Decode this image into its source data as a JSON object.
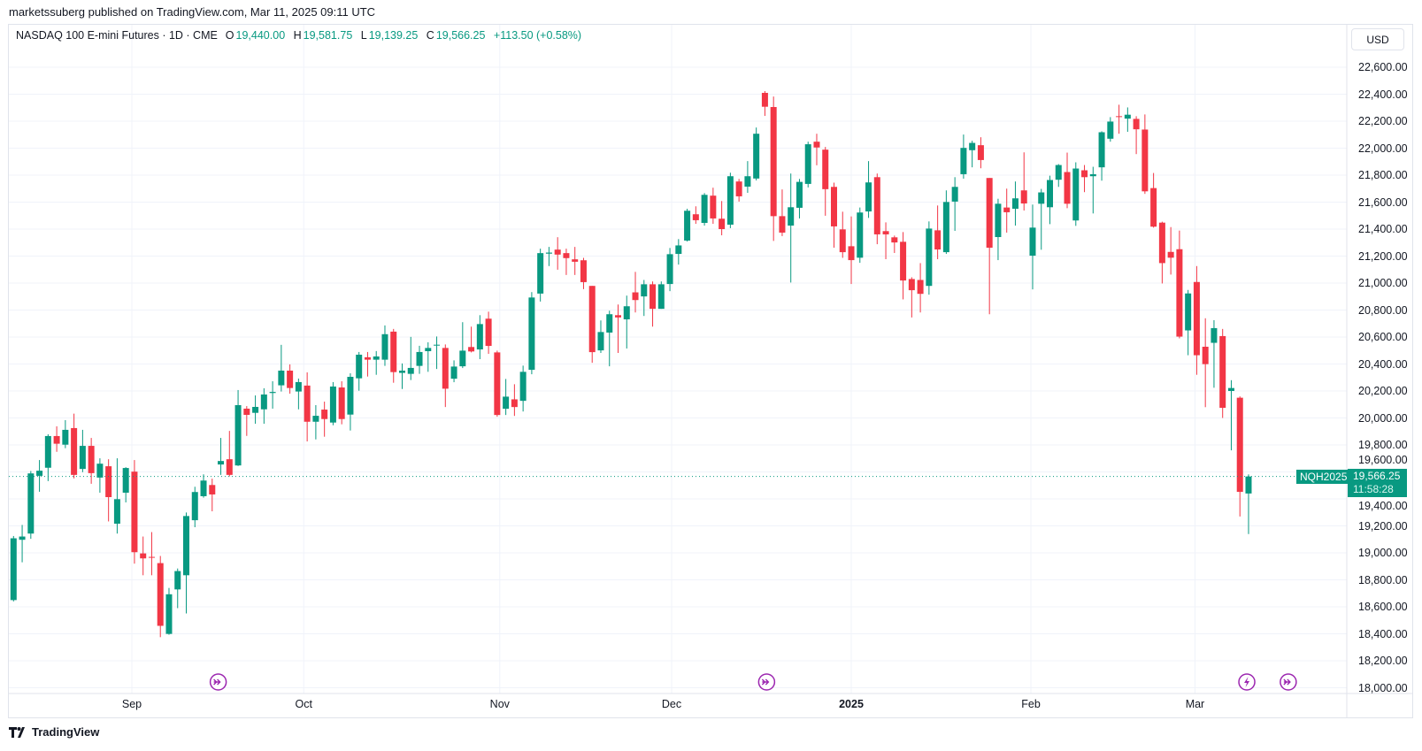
{
  "publisher_line": "marketssuberg published on TradingView.com, Mar 11, 2025 09:11 UTC",
  "legend": {
    "symbol": "NASDAQ 100 E-mini Futures · 1D · CME",
    "o_label": "O",
    "o": "19,440.00",
    "h_label": "H",
    "h": "19,581.75",
    "l_label": "L",
    "l": "19,139.25",
    "c_label": "C",
    "c": "19,566.25",
    "change": "+113.50 (+0.58%)"
  },
  "currency_button": "USD",
  "price_tag": {
    "symbol": "NQH2025",
    "price": "19,566.25",
    "countdown": "11:58:28"
  },
  "branding": "TradingView",
  "colors": {
    "up": "#089981",
    "down": "#F23645",
    "event": "#9C27B0",
    "grid": "#f0f3fa"
  },
  "chart_data": {
    "type": "candlestick",
    "title": "NASDAQ 100 E-mini Futures · 1D · CME",
    "ylabel": "USD",
    "ylim": [
      17950,
      22750
    ],
    "current_price": 19566.25,
    "y_ticks": [
      "22,600.00",
      "22,400.00",
      "22,200.00",
      "22,000.00",
      "21,800.00",
      "21,600.00",
      "21,400.00",
      "21,200.00",
      "21,000.00",
      "20,800.00",
      "20,600.00",
      "20,400.00",
      "20,200.00",
      "20,000.00",
      "19,800.00",
      "19,600.00",
      "19,400.00",
      "19,200.00",
      "19,000.00",
      "18,800.00",
      "18,600.00",
      "18,400.00",
      "18,200.00",
      "18,000.00"
    ],
    "y_tick_values": [
      22600,
      22400,
      22200,
      22000,
      21800,
      21600,
      21400,
      21200,
      21000,
      20800,
      20600,
      20400,
      20200,
      20000,
      19800,
      19600,
      19400,
      19200,
      19000,
      18800,
      18600,
      18400,
      18200,
      18000
    ],
    "x_ticks": [
      {
        "label": "Sep",
        "bar": 13.7,
        "bold": false
      },
      {
        "label": "Oct",
        "bar": 33.6,
        "bold": false
      },
      {
        "label": "Nov",
        "bar": 56.3,
        "bold": false
      },
      {
        "label": "Dec",
        "bar": 76.2,
        "bold": false
      },
      {
        "label": "2025",
        "bar": 97,
        "bold": true
      },
      {
        "label": "Feb",
        "bar": 117.8,
        "bold": false
      },
      {
        "label": "Mar",
        "bar": 136.8,
        "bold": false
      }
    ],
    "events": [
      {
        "type": "dividend-arrow",
        "bar": 23.7
      },
      {
        "type": "dividend-arrow",
        "bar": 87.2
      },
      {
        "type": "lightning",
        "bar": 142.8
      },
      {
        "type": "dividend-arrow",
        "bar": 147.6
      }
    ],
    "ohlc_columns": [
      "open",
      "high",
      "low",
      "close"
    ],
    "ohlc": [
      [
        18650,
        19125,
        18640,
        19108
      ],
      [
        19097,
        19207,
        18930,
        19121
      ],
      [
        19143,
        19607,
        19104,
        19589
      ],
      [
        19571,
        19688,
        19453,
        19609
      ],
      [
        19631,
        19879,
        19532,
        19866
      ],
      [
        19866,
        19938,
        19749,
        19809
      ],
      [
        19802,
        19984,
        19776,
        19912
      ],
      [
        19925,
        20032,
        19552,
        19578
      ],
      [
        19622,
        19912,
        19598,
        19793
      ],
      [
        19793,
        19852,
        19512,
        19591
      ],
      [
        19558,
        19701,
        19446,
        19661
      ],
      [
        19642,
        19694,
        19233,
        19413
      ],
      [
        19216,
        19701,
        19143,
        19398
      ],
      [
        19446,
        19635,
        19374,
        19629
      ],
      [
        19602,
        19688,
        18920,
        19005
      ],
      [
        18996,
        19121,
        18834,
        18959
      ],
      [
        18970,
        19154,
        18834,
        18966
      ],
      [
        18924,
        18977,
        18375,
        18459
      ],
      [
        18399,
        18740,
        18393,
        18693
      ],
      [
        18729,
        18884,
        18590,
        18865
      ],
      [
        18834,
        19299,
        18551,
        19273
      ],
      [
        19242,
        19490,
        19190,
        19451
      ],
      [
        19420,
        19582,
        19409,
        19536
      ],
      [
        19503,
        19550,
        19308,
        19433
      ],
      [
        19655,
        19852,
        19578,
        19681
      ],
      [
        19694,
        19904,
        19567,
        19578
      ],
      [
        19648,
        20207,
        19644,
        20095
      ],
      [
        20069,
        20088,
        19867,
        20023
      ],
      [
        20038,
        20167,
        19957,
        20082
      ],
      [
        20064,
        20220,
        19957,
        20174
      ],
      [
        20185,
        20272,
        20069,
        20193
      ],
      [
        20242,
        20542,
        20196,
        20351
      ],
      [
        20351,
        20397,
        20180,
        20222
      ],
      [
        20196,
        20292,
        20064,
        20266
      ],
      [
        20240,
        20338,
        19826,
        19972
      ],
      [
        19972,
        20095,
        19841,
        20016
      ],
      [
        20062,
        20121,
        19861,
        19992
      ],
      [
        19966,
        20266,
        19946,
        20233
      ],
      [
        20226,
        20272,
        19953,
        19992
      ],
      [
        20025,
        20331,
        19907,
        20305
      ],
      [
        20294,
        20489,
        20202,
        20469
      ],
      [
        20450,
        20489,
        20307,
        20432
      ],
      [
        20432,
        20496,
        20320,
        20456
      ],
      [
        20432,
        20686,
        20386,
        20621
      ],
      [
        20640,
        20660,
        20261,
        20340
      ],
      [
        20334,
        20404,
        20215,
        20351
      ],
      [
        20327,
        20601,
        20281,
        20371
      ],
      [
        20386,
        20535,
        20327,
        20489
      ],
      [
        20495,
        20561,
        20342,
        20519
      ],
      [
        20541,
        20604,
        20363,
        20543
      ],
      [
        20519,
        20545,
        20081,
        20217
      ],
      [
        20291,
        20427,
        20265,
        20381
      ],
      [
        20383,
        20710,
        20370,
        20499
      ],
      [
        20526,
        20677,
        20486,
        20493
      ],
      [
        20508,
        20762,
        20436,
        20696
      ],
      [
        20736,
        20788,
        20475,
        20534
      ],
      [
        20486,
        20499,
        20009,
        20022
      ],
      [
        20068,
        20289,
        20022,
        20158
      ],
      [
        20138,
        20250,
        20015,
        20081
      ],
      [
        20127,
        20388,
        20048,
        20342
      ],
      [
        20357,
        20933,
        20324,
        20893
      ],
      [
        20922,
        21255,
        20863,
        21222
      ],
      [
        21218,
        21268,
        21126,
        21226
      ],
      [
        21248,
        21340,
        21099,
        21211
      ],
      [
        21222,
        21255,
        21060,
        21185
      ],
      [
        21176,
        21268,
        21060,
        21158
      ],
      [
        21169,
        21187,
        20955,
        21007
      ],
      [
        20979,
        20979,
        20409,
        20488
      ],
      [
        20501,
        20723,
        20482,
        20637
      ],
      [
        20633,
        20795,
        20383,
        20769
      ],
      [
        20762,
        20841,
        20482,
        20745
      ],
      [
        20731,
        20907,
        20515,
        20828
      ],
      [
        20931,
        21083,
        20782,
        20874
      ],
      [
        20901,
        21023,
        20756,
        20991
      ],
      [
        20991,
        21012,
        20677,
        20809
      ],
      [
        20809,
        21012,
        20809,
        20991
      ],
      [
        20993,
        21260,
        20940,
        21214
      ],
      [
        21216,
        21326,
        21137,
        21279
      ],
      [
        21315,
        21551,
        21308,
        21536
      ],
      [
        21510,
        21569,
        21439,
        21466
      ],
      [
        21446,
        21667,
        21426,
        21654
      ],
      [
        21648,
        21707,
        21439,
        21479
      ],
      [
        21477,
        21608,
        21354,
        21400
      ],
      [
        21433,
        21818,
        21407,
        21792
      ],
      [
        21753,
        21772,
        21604,
        21643
      ],
      [
        21715,
        21904,
        21669,
        21792
      ],
      [
        21775,
        22153,
        21761,
        22107
      ],
      [
        22410,
        22423,
        22239,
        22307
      ],
      [
        22305,
        22383,
        21312,
        21496
      ],
      [
        21496,
        21694,
        21348,
        21374
      ],
      [
        21426,
        21812,
        21004,
        21562
      ],
      [
        21558,
        21772,
        21479,
        21750
      ],
      [
        21735,
        22048,
        21709,
        22029
      ],
      [
        22048,
        22107,
        21873,
        22005
      ],
      [
        21989,
        22009,
        21499,
        21696
      ],
      [
        21713,
        21744,
        21262,
        21420
      ],
      [
        21398,
        21529,
        21187,
        21229
      ],
      [
        21273,
        21494,
        20993,
        21170
      ],
      [
        21188,
        21560,
        21150,
        21523
      ],
      [
        21531,
        21904,
        21483,
        21746
      ],
      [
        21785,
        21812,
        21288,
        21361
      ],
      [
        21385,
        21450,
        21177,
        21361
      ],
      [
        21339,
        21352,
        21223,
        21301
      ],
      [
        21306,
        21378,
        20879,
        21019
      ],
      [
        21030,
        21043,
        20745,
        20947
      ],
      [
        21023,
        21148,
        20782,
        20920
      ],
      [
        20979,
        21457,
        20914,
        21404
      ],
      [
        21391,
        21575,
        21177,
        21249
      ],
      [
        21229,
        21687,
        21216,
        21601
      ],
      [
        21604,
        21785,
        21387,
        21713
      ],
      [
        21807,
        22101,
        21774,
        22002
      ],
      [
        21985,
        22055,
        21858,
        22039
      ],
      [
        22022,
        22081,
        21851,
        21912
      ],
      [
        21779,
        21779,
        20769,
        21262
      ],
      [
        21341,
        21625,
        21170,
        21588
      ],
      [
        21560,
        21700,
        21374,
        21525
      ],
      [
        21551,
        21753,
        21426,
        21628
      ],
      [
        21687,
        21969,
        21538,
        21590
      ],
      [
        21203,
        21582,
        20953,
        21411
      ],
      [
        21588,
        21698,
        21247,
        21672
      ],
      [
        21562,
        21796,
        21437,
        21764
      ],
      [
        21766,
        21882,
        21713,
        21875
      ],
      [
        21823,
        21967,
        21555,
        21588
      ],
      [
        21464,
        21895,
        21424,
        21849
      ],
      [
        21836,
        21875,
        21674,
        21785
      ],
      [
        21792,
        21862,
        21516,
        21807
      ],
      [
        21858,
        22125,
        21759,
        22118
      ],
      [
        22070,
        22230,
        22048,
        22197
      ],
      [
        22237,
        22322,
        22107,
        22232
      ],
      [
        22219,
        22302,
        22121,
        22248
      ],
      [
        22217,
        22237,
        21956,
        22140
      ],
      [
        22138,
        22250,
        21661,
        21680
      ],
      [
        21704,
        21816,
        21411,
        21418
      ],
      [
        21448,
        21455,
        20997,
        21148
      ],
      [
        21231,
        21415,
        21063,
        21188
      ],
      [
        21251,
        21389,
        20590,
        20603
      ],
      [
        20649,
        20949,
        20465,
        20923
      ],
      [
        21008,
        21126,
        20320,
        20465
      ],
      [
        20528,
        20739,
        20080,
        20399
      ],
      [
        20557,
        20725,
        20224,
        20666
      ],
      [
        20607,
        20660,
        20000,
        20075
      ],
      [
        20200,
        20280,
        19760,
        20222
      ],
      [
        20150,
        20160,
        19270,
        19452
      ],
      [
        19440,
        19581.75,
        19139.25,
        19566.25
      ]
    ]
  }
}
